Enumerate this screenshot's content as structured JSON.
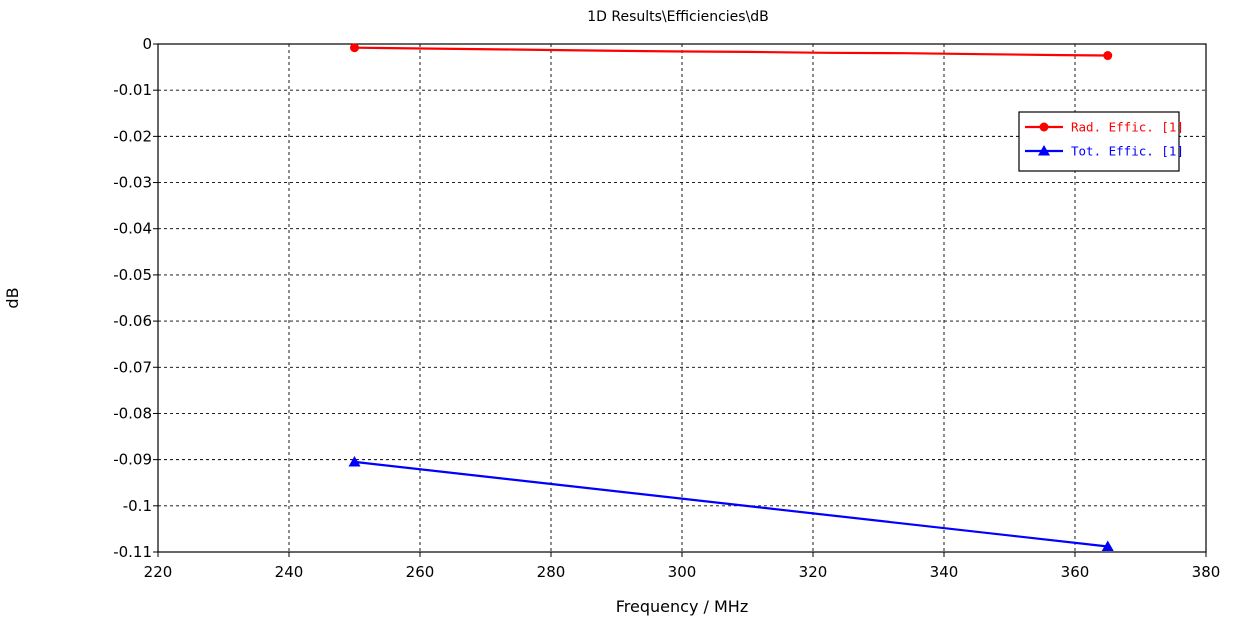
{
  "chart_data": {
    "type": "line",
    "title": "1D Results\\Efficiencies\\dB",
    "xlabel": "Frequency / MHz",
    "ylabel": "dB",
    "xlim": [
      220,
      380
    ],
    "ylim": [
      -0.11,
      0
    ],
    "xticks": [
      220,
      240,
      260,
      280,
      300,
      320,
      340,
      360,
      380
    ],
    "xtick_labels": [
      "220",
      "240",
      "260",
      "280",
      "300",
      "320",
      "340",
      "360",
      "380"
    ],
    "yticks": [
      0,
      -0.01,
      -0.02,
      -0.03,
      -0.04,
      -0.05,
      -0.06,
      -0.07,
      -0.08,
      -0.09,
      -0.1,
      -0.11
    ],
    "ytick_labels": [
      "0",
      "-0.01",
      "-0.02",
      "-0.03",
      "-0.04",
      "-0.05",
      "-0.06",
      "-0.07",
      "-0.08",
      "-0.09",
      "-0.1",
      "-0.11"
    ],
    "grid": true,
    "legend_position": "top-right",
    "series": [
      {
        "name": "Rad. Effic. [1]",
        "color": "#ff0000",
        "marker": "circle",
        "x": [
          250,
          365
        ],
        "y": [
          -0.0008,
          -0.0025
        ],
        "curve_x": [
          250,
          262,
          274,
          286,
          298,
          310,
          322,
          334,
          346,
          358,
          365
        ],
        "curve_y": [
          -0.0008,
          -0.001,
          -0.0012,
          -0.0014,
          -0.0016,
          -0.0017,
          -0.0019,
          -0.002,
          -0.0022,
          -0.0024,
          -0.0025
        ]
      },
      {
        "name": "Tot. Effic. [1]",
        "color": "#0000ff",
        "marker": "triangle",
        "x": [
          250,
          365
        ],
        "y": [
          -0.0905,
          -0.1088
        ],
        "curve_x": [
          250,
          365
        ],
        "curve_y": [
          -0.0905,
          -0.1088
        ]
      }
    ]
  }
}
